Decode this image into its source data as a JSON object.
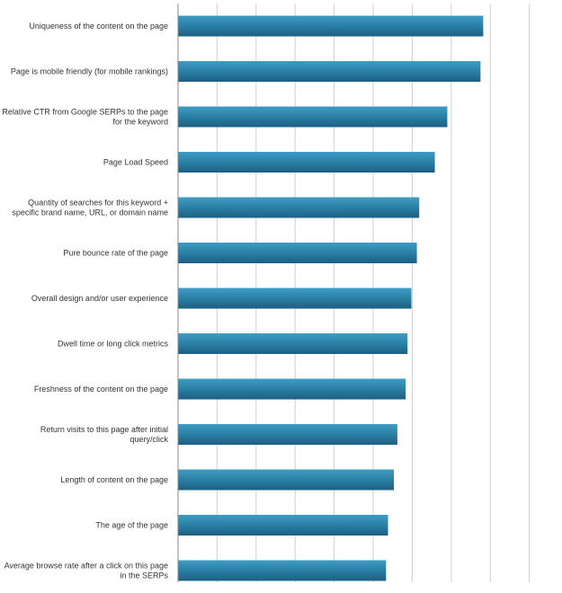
{
  "chart_data": {
    "type": "bar",
    "orientation": "horizontal",
    "title": "",
    "xlabel": "",
    "ylabel": "",
    "grid": true,
    "legend": "none",
    "xlim": [
      0,
      9
    ],
    "categories": [
      "Uniqueness of the content on the page",
      "Page is mobile friendly (for mobile rankings)",
      "Relative CTR from Google SERPs to the page for the keyword",
      "Page Load Speed",
      "Quantity of searches for this keyword + specific brand name, URL, or domain name",
      "Pure bounce rate of the page",
      "Overall design and/or user experience",
      "Dwell time or long click metrics",
      "Freshness of the content on the page",
      "Return visits to this page after initial query/click",
      "Length of content on the page",
      "The age of the page",
      "Average browse rate after a click on this page in the SERPs"
    ],
    "series": [
      {
        "values": [
          7.82,
          7.75,
          6.9,
          6.58,
          6.18,
          6.12,
          5.98,
          5.88,
          5.83,
          5.62,
          5.53,
          5.38,
          5.33
        ],
        "color": "#2a7fa5"
      }
    ]
  }
}
